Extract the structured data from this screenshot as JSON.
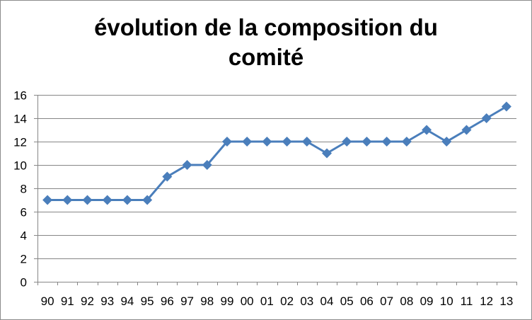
{
  "chart_data": {
    "type": "line",
    "title_lines": [
      "évolution de la composition du",
      "comité"
    ],
    "categories": [
      "90",
      "91",
      "92",
      "93",
      "94",
      "95",
      "96",
      "97",
      "98",
      "99",
      "00",
      "01",
      "02",
      "03",
      "04",
      "05",
      "06",
      "07",
      "08",
      "09",
      "10",
      "11",
      "12",
      "13"
    ],
    "series": [
      {
        "values": [
          7,
          7,
          7,
          7,
          7,
          7,
          9,
          10,
          10,
          12,
          12,
          12,
          12,
          12,
          11,
          12,
          12,
          12,
          12,
          13,
          12,
          13,
          14,
          15
        ]
      }
    ],
    "ylim": [
      0,
      16
    ],
    "yticks": [
      0,
      2,
      4,
      6,
      8,
      10,
      12,
      14,
      16
    ],
    "grid": true,
    "marker": "diamond",
    "colors": {
      "series": "#4a7ebb",
      "grid": "#868686",
      "axis": "#868686"
    }
  }
}
